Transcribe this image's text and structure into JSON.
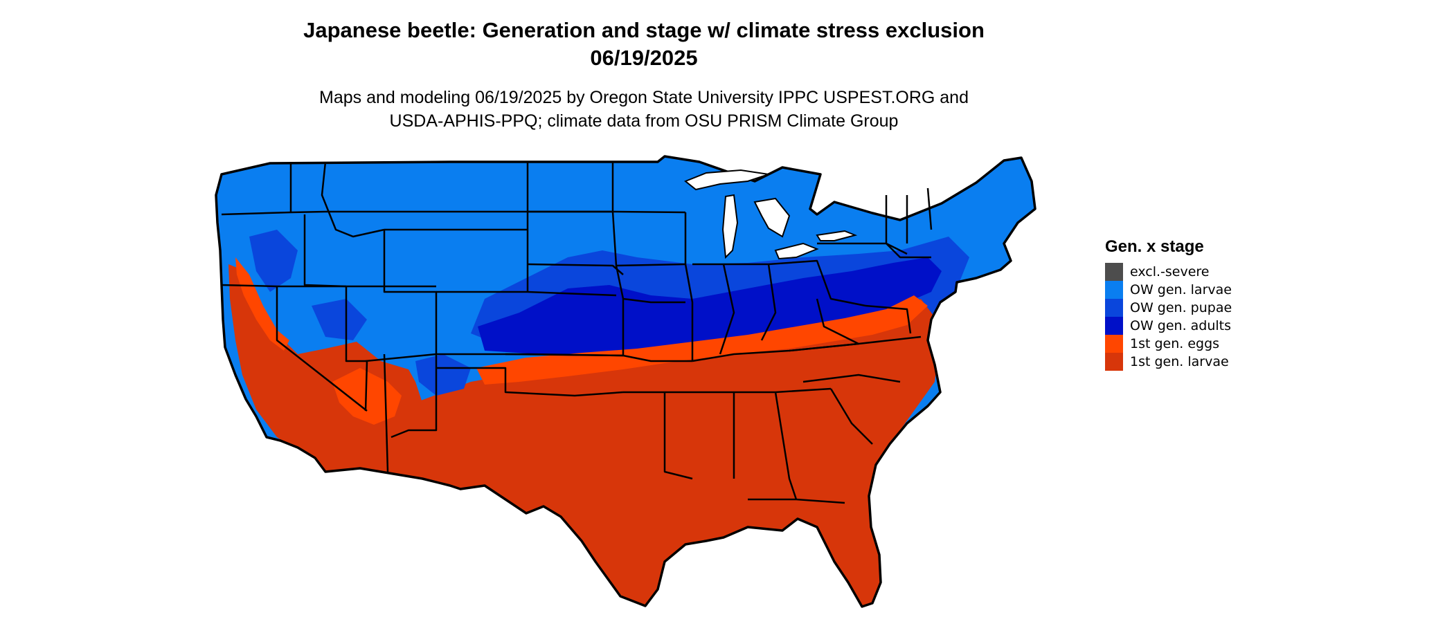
{
  "title": {
    "line1": "Japanese beetle: Generation and stage w/ climate stress exclusion",
    "line2": "06/19/2025"
  },
  "subtitle": {
    "line1": "Maps and modeling 06/19/2025 by Oregon State University IPPC USPEST.ORG and",
    "line2": "USDA-APHIS-PPQ; climate data from OSU PRISM Climate Group"
  },
  "legend": {
    "title": "Gen. x stage",
    "items": [
      {
        "label": "excl.-severe",
        "color": "#4d4d4d"
      },
      {
        "label": "OW gen. larvae",
        "color": "#0a7ef0"
      },
      {
        "label": "OW gen. pupae",
        "color": "#0a46dc"
      },
      {
        "label": "OW gen. adults",
        "color": "#0010c8"
      },
      {
        "label": "1st gen. eggs",
        "color": "#ff4600"
      },
      {
        "label": "1st gen. larvae",
        "color": "#d7360a"
      }
    ]
  },
  "map": {
    "region": "conterminous United States",
    "stroke_color": "#000000"
  }
}
